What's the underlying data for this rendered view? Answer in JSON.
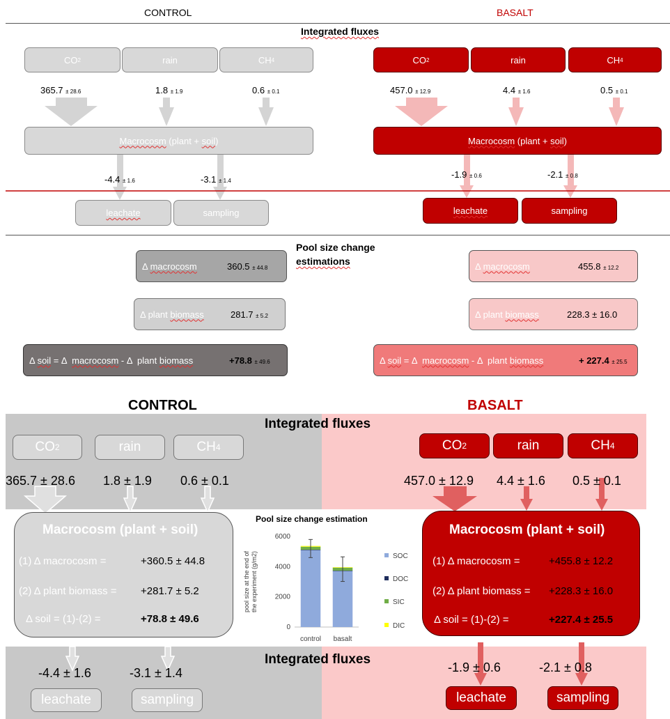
{
  "top": {
    "control_title": "CONTROL",
    "basalt_title": "BASALT",
    "integrated_title": "Integrated fluxes",
    "control": {
      "inputs": [
        "CO",
        "rain",
        "CH"
      ],
      "input_subs": [
        "2",
        "",
        "4"
      ],
      "input_values": [
        "365.7",
        "1.8",
        "0.6"
      ],
      "input_errors": [
        "± 28.6",
        "± 1.9",
        "± 0.1"
      ],
      "macro_a": "Macrocosm",
      "macro_b": " (plant + ",
      "macro_c": "soil",
      "macro_d": ")",
      "outputs": [
        "leachate",
        "sampling"
      ],
      "output_values": [
        "-4.4",
        "-3.1"
      ],
      "output_errors": [
        "± 1.6",
        "± 1.4"
      ]
    },
    "basalt": {
      "inputs": [
        "CO",
        "rain",
        "CH"
      ],
      "input_subs": [
        "2",
        "",
        "4"
      ],
      "input_values": [
        "457.0",
        "4.4",
        "0.5"
      ],
      "input_errors": [
        "± 12.9",
        "± 1.6",
        "± 0.1"
      ],
      "macro_a": "Macrocosm",
      "macro_b": " (plant + ",
      "macro_c": "soil",
      "macro_d": ")",
      "outputs": [
        "leachate",
        "sampling"
      ],
      "output_values": [
        "-1.9",
        "-2.1"
      ],
      "output_errors": [
        "± 0.6",
        "± 0.8"
      ]
    },
    "pool_title_1": "Pool size change",
    "pool_title_2": "estimations",
    "pool_control": {
      "macro_label_a": "Δ ",
      "macro_label_b": "macrocosm",
      "macro_value": "360.5",
      "macro_error": "± 44.8",
      "plant_label_a": "Δ plant ",
      "plant_label_b": "biomass",
      "plant_value": "281.7",
      "plant_error": "± 5.2",
      "soil_label_a": "Δ ",
      "soil_label_b": "soil",
      "soil_label_c": " = Δ  ",
      "soil_label_d": "macrocosm",
      "soil_label_e": " - Δ  plant ",
      "soil_label_f": "biomass",
      "soil_value": "+78.8",
      "soil_error": "± 49.6"
    },
    "pool_basalt": {
      "macro_label_a": "Δ ",
      "macro_label_b": "macrocosm",
      "macro_value": "455.8",
      "macro_error": "± 12.2",
      "plant_label_a": "Δ plant ",
      "plant_label_b": "biomass",
      "plant_value": "228.3 ± 16.0",
      "soil_label_a": "Δ ",
      "soil_label_b": "soil",
      "soil_label_c": " = Δ  ",
      "soil_label_d": "macrocosm",
      "soil_label_e": " - Δ  plant ",
      "soil_label_f": "biomass",
      "soil_value": "+ 227.4",
      "soil_error": "± 25.5"
    }
  },
  "bottom": {
    "control_title": "CONTROL",
    "basalt_title": "BASALT",
    "integrated_title": "Integrated fluxes",
    "integrated_title_2": "Integrated fluxes",
    "control": {
      "inputs": [
        "CO",
        "rain",
        "CH"
      ],
      "input_subs": [
        "2",
        "",
        "4"
      ],
      "input_values": [
        "365.7 ± 28.6",
        "1.8 ± 1.9",
        "0.6 ± 0.1"
      ],
      "macro_title": "Macrocosm (plant + soil)",
      "rows": [
        {
          "label": "(1) Δ macrocosm =",
          "value": "+360.5 ± 44.8"
        },
        {
          "label": "(2) Δ plant biomass =",
          "value": "+281.7 ± 5.2"
        },
        {
          "label": "Δ soil = (1)-(2) =",
          "value": "+78.8 ± 49.6"
        }
      ],
      "output_values": [
        "-4.4 ± 1.6",
        "-3.1 ± 1.4"
      ],
      "outputs": [
        "leachate",
        "sampling"
      ]
    },
    "basalt": {
      "inputs": [
        "CO",
        "rain",
        "CH"
      ],
      "input_subs": [
        "2",
        "",
        "4"
      ],
      "input_values": [
        "457.0 ± 12.9",
        "4.4 ± 1.6",
        "0.5 ± 0.1"
      ],
      "macro_title": "Macrocosm (plant + soil)",
      "rows": [
        {
          "label": "(1) Δ macrocosm =",
          "value": "+455.8 ± 12.2"
        },
        {
          "label": "(2) Δ plant biomass =",
          "value": "+228.3 ± 16.0"
        },
        {
          "label": "Δ soil = (1)-(2) =",
          "value": "+227.4 ± 25.5"
        }
      ],
      "output_values": [
        "-1.9 ± 0.6",
        "-2.1 ± 0.8"
      ],
      "outputs": [
        "leachate",
        "sampling"
      ]
    }
  },
  "chart_data": {
    "type": "bar",
    "stacked": true,
    "title": "Pool size change estimation",
    "ylabel": "pool size at the end of the experiment (g/m2)",
    "ylabel_line1": "pool size at the end of",
    "ylabel_line2": "the experiment (g/m2)",
    "categories": [
      "control",
      "basalt"
    ],
    "ylim": [
      0,
      6000
    ],
    "yticks": [
      0,
      2000,
      4000,
      6000
    ],
    "series": [
      {
        "name": "SOC",
        "color": "#8faadc",
        "values": [
          5100,
          3720
        ]
      },
      {
        "name": "DOC",
        "color": "#1f2d5c",
        "values": [
          20,
          15
        ]
      },
      {
        "name": "SIC",
        "color": "#70ad47",
        "values": [
          200,
          200
        ]
      },
      {
        "name": "DIC",
        "color": "#ffff00",
        "values": [
          50,
          30
        ]
      }
    ],
    "error_bars": {
      "center": [
        5250,
        3830
      ],
      "low": [
        4600,
        3020
      ],
      "high": [
        5800,
        4650
      ]
    },
    "legend_position": "right"
  },
  "colors": {
    "control_fill": "#d8d8d8",
    "control_arrow": "#d4d4d4",
    "basalt_fill": "#c00000",
    "basalt_arrow": "#f4b8b8",
    "bottom_control_bg": "#c8c8c8",
    "bottom_basalt_bg": "#fbc9c9",
    "divider_red": "#c00000"
  }
}
